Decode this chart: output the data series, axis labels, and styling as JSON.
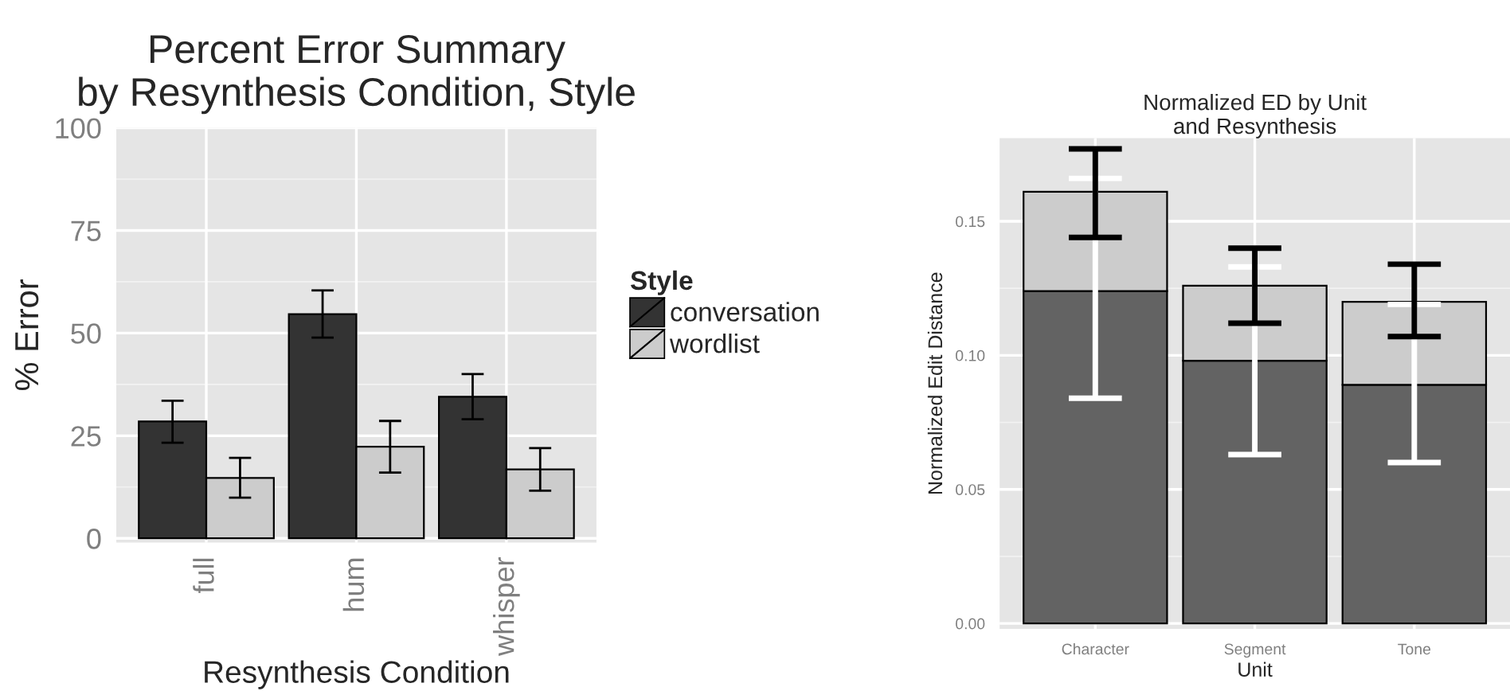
{
  "chart_data": [
    {
      "type": "bar",
      "title": "Percent Error Summary\nby Resynthesis Condition, Style",
      "xlabel": "Resynthesis Condition",
      "ylabel": "% Error",
      "legend_title": "Style",
      "categories": [
        "full",
        "hum",
        "whisper"
      ],
      "ylim": [
        -1,
        100
      ],
      "yticks": [
        0,
        25,
        50,
        75,
        100
      ],
      "grid": true,
      "legend": "right",
      "series": [
        {
          "name": "conversation",
          "color": "#333333",
          "values": [
            28.5,
            54.6,
            34.5
          ],
          "errors": [
            [
              23.3,
              33.5
            ],
            [
              48.9,
              60.4
            ],
            [
              29.0,
              40.0
            ]
          ]
        },
        {
          "name": "wordlist",
          "color": "#cccccc",
          "values": [
            14.7,
            22.3,
            16.8
          ],
          "errors": [
            [
              9.9,
              19.6
            ],
            [
              16.0,
              28.6
            ],
            [
              11.6,
              22.0
            ]
          ]
        }
      ]
    },
    {
      "type": "bar",
      "stacked": true,
      "title": "Normalized ED by Unit\nand Resynthesis",
      "xlabel": "Unit",
      "ylabel": "Normalized Edit Distance",
      "categories": [
        "Character",
        "Segment",
        "Tone"
      ],
      "ylim": [
        -0.002,
        0.181
      ],
      "yticks": [
        {
          "value": 0,
          "label": "0.00"
        },
        {
          "value": 0.05,
          "label": "0.05"
        },
        {
          "value": 0.1,
          "label": "0.10"
        },
        {
          "value": 0.15,
          "label": "0.15"
        }
      ],
      "grid": true,
      "legend": false,
      "series": [
        {
          "color": "#636363",
          "values": [
            0.124,
            0.098,
            0.089
          ],
          "errors": [
            [
              0.084,
              0.166
            ],
            [
              0.063,
              0.133
            ],
            [
              0.06,
              0.119
            ]
          ]
        },
        {
          "color": "#cccccc",
          "values": [
            0.037,
            0.028,
            0.031
          ],
          "errors": [
            [
              0.144,
              0.177
            ],
            [
              0.112,
              0.14
            ],
            [
              0.107,
              0.134
            ]
          ]
        }
      ]
    }
  ]
}
